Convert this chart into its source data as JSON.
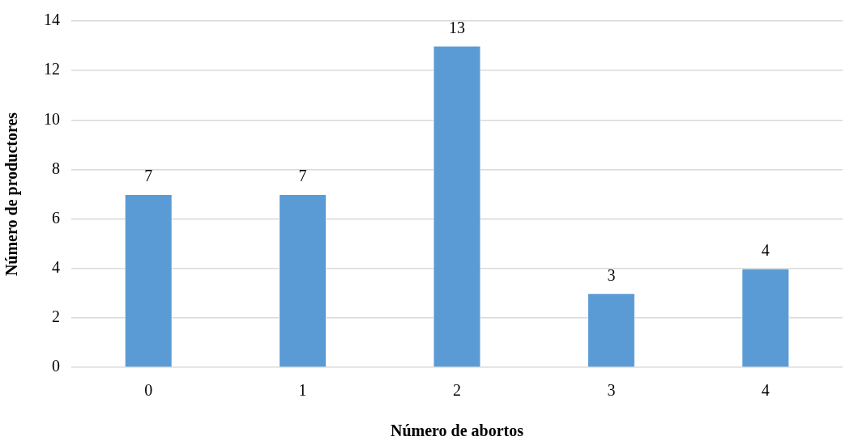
{
  "chart_data": {
    "type": "bar",
    "xlabel": "Número de abortos",
    "ylabel": "Número de productores",
    "categories": [
      "0",
      "1",
      "2",
      "3",
      "4"
    ],
    "values": [
      7,
      7,
      13,
      3,
      4
    ],
    "color": "#5b9bd5",
    "ylim": [
      0,
      14
    ],
    "yticks": [
      0,
      2,
      4,
      6,
      8,
      10,
      12,
      14
    ],
    "grid": "y",
    "data_labels": true
  }
}
